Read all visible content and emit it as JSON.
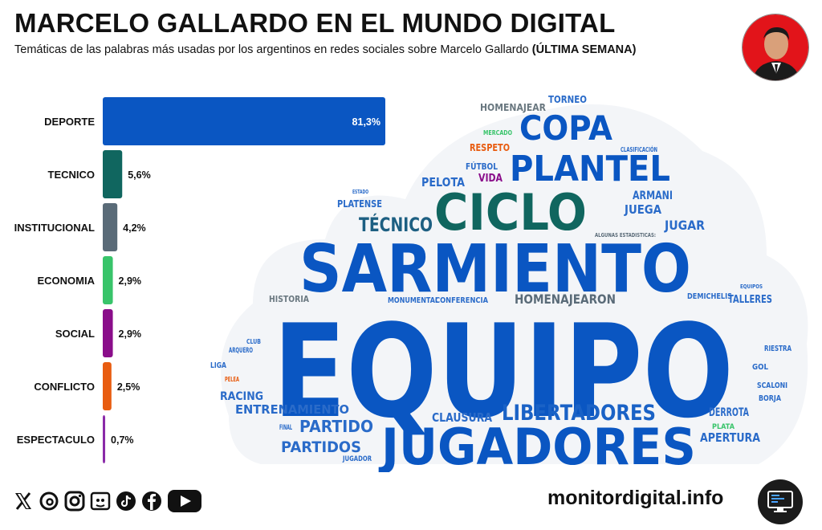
{
  "header": {
    "title": "MARCELO GALLARDO EN EL MUNDO DIGITAL",
    "subtitle": "Temáticas de las palabras más usadas por los argentinos en redes sociales sobre Marcelo Gallardo",
    "subtitle_bold": "(ÚLTIMA SEMANA)"
  },
  "chart_data": {
    "type": "bar",
    "orientation": "horizontal",
    "categories": [
      "DEPORTE",
      "TECNICO",
      "INSTITUCIONAL",
      "ECONOMIA",
      "SOCIAL",
      "CONFLICTO",
      "ESPECTACULO"
    ],
    "values": [
      81.3,
      5.6,
      4.2,
      2.9,
      2.9,
      2.5,
      0.7
    ],
    "value_labels": [
      "81,3%",
      "5,6%",
      "4,2%",
      "2,9%",
      "2,9%",
      "2,5%",
      "0,7%"
    ],
    "colors": [
      "#0a56c2",
      "#10665f",
      "#5a6b78",
      "#38c46a",
      "#8a0d8a",
      "#e85c10",
      "#8a2aa8"
    ],
    "xlim": [
      0,
      81.3
    ],
    "grid": false,
    "legend": "none"
  },
  "wordcloud": {
    "words": [
      {
        "text": "EQUIPO",
        "color": "#0a56c2"
      },
      {
        "text": "SARMIENTO",
        "color": "#0a56c2"
      },
      {
        "text": "JUGADORES",
        "color": "#0a56c2"
      },
      {
        "text": "CICLO",
        "color": "#10665f"
      },
      {
        "text": "PLANTEL",
        "color": "#0a56c2"
      },
      {
        "text": "COPA",
        "color": "#0a56c2"
      },
      {
        "text": "LIBERTADORES",
        "color": "#1a62c6"
      },
      {
        "text": "TÉCNICO",
        "color": "#1d5f82"
      },
      {
        "text": "PARTIDO",
        "color": "#2a6bc9"
      },
      {
        "text": "PARTIDOS",
        "color": "#2a6bc9"
      },
      {
        "text": "HOMENAJEARON",
        "color": "#5a6b78"
      },
      {
        "text": "ENTRENAMIENTO",
        "color": "#2a6bc9"
      },
      {
        "text": "CLAUSURA",
        "color": "#2a6bc9"
      },
      {
        "text": "RACING",
        "color": "#2a6bc9"
      },
      {
        "text": "APERTURA",
        "color": "#2a6bc9"
      },
      {
        "text": "PELOTA",
        "color": "#2a6bc9"
      },
      {
        "text": "JUGAR",
        "color": "#2a6bc9"
      },
      {
        "text": "JUEGA",
        "color": "#2a6bc9"
      },
      {
        "text": "ARMANI",
        "color": "#2a6bc9"
      },
      {
        "text": "DERROTA",
        "color": "#2a6bc9"
      },
      {
        "text": "TALLERES",
        "color": "#2a6bc9"
      },
      {
        "text": "HISTORIA",
        "color": "#6a7880"
      },
      {
        "text": "PLATENSE",
        "color": "#2a6bc9"
      },
      {
        "text": "TORNEO",
        "color": "#2a6bc9"
      },
      {
        "text": "HOMENAJEAR",
        "color": "#6a7880"
      },
      {
        "text": "RESPETO",
        "color": "#e85c10"
      },
      {
        "text": "VIDA",
        "color": "#8a0d8a"
      },
      {
        "text": "FÚTBOL",
        "color": "#2a6bc9"
      },
      {
        "text": "MONUMENTAL",
        "color": "#2a6bc9"
      },
      {
        "text": "CONFERENCIA",
        "color": "#2a6bc9"
      },
      {
        "text": "BORJA",
        "color": "#2a6bc9"
      },
      {
        "text": "GOL",
        "color": "#2a6bc9"
      },
      {
        "text": "RIESTRA",
        "color": "#2a6bc9"
      },
      {
        "text": "SCALONI",
        "color": "#2a6bc9"
      },
      {
        "text": "DEMICHELIS",
        "color": "#2a6bc9"
      },
      {
        "text": "LIGA",
        "color": "#2a6bc9"
      },
      {
        "text": "ARQUERO",
        "color": "#2a6bc9"
      },
      {
        "text": "CLUB",
        "color": "#2a6bc9"
      },
      {
        "text": "PELEA",
        "color": "#e85c10"
      },
      {
        "text": "PLATA",
        "color": "#38c46a"
      },
      {
        "text": "MERCADO",
        "color": "#38c46a"
      },
      {
        "text": "FINAL",
        "color": "#2a6bc9"
      },
      {
        "text": "JUGADOR",
        "color": "#2a6bc9"
      },
      {
        "text": "EQUIPOS",
        "color": "#2a6bc9"
      },
      {
        "text": "ESTADO",
        "color": "#2a6bc9"
      },
      {
        "text": "CLASIFICACIÓN",
        "color": "#2a6bc9"
      },
      {
        "text": "ALGUNAS ESTADISTICAS:",
        "color": "#5a6b78"
      }
    ]
  },
  "footer": {
    "social_icons": [
      "x-icon",
      "threads-icon",
      "instagram-icon",
      "facebook-gaming-icon",
      "tiktok-icon",
      "facebook-icon",
      "youtube-icon"
    ],
    "brand": "monitordigital.info"
  }
}
